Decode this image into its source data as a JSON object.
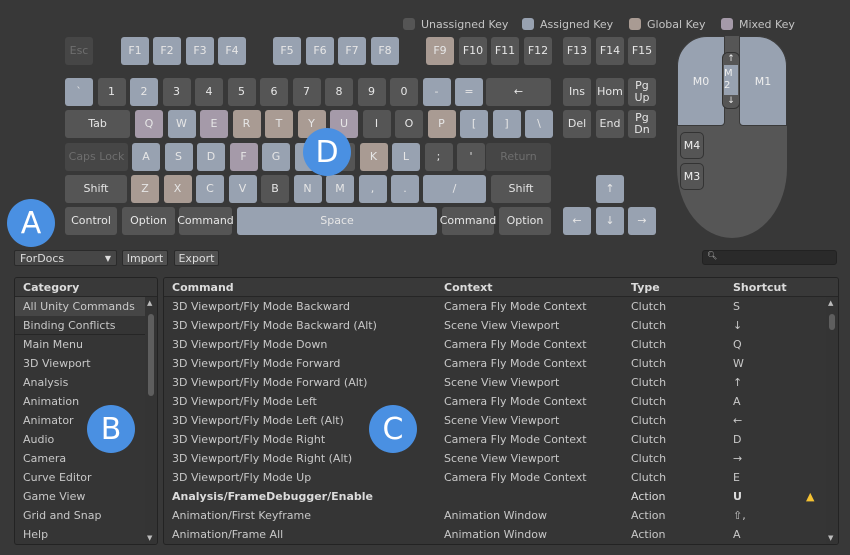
{
  "legend": [
    {
      "label": "Unassigned Key",
      "color": "#555555"
    },
    {
      "label": "Assigned Key",
      "color": "#98a2b1"
    },
    {
      "label": "Global Key",
      "color": "#a99b93"
    },
    {
      "label": "Mixed Key",
      "color": "#a59aa9"
    }
  ],
  "keyboard": {
    "rows": [
      [
        [
          "Esc",
          "d"
        ],
        [
          "F1",
          "a"
        ],
        [
          "F2",
          "a"
        ],
        [
          "F3",
          "a"
        ],
        [
          "F4",
          "a"
        ],
        [
          "F5",
          "a"
        ],
        [
          "F6",
          "a"
        ],
        [
          "F7",
          "a"
        ],
        [
          "F8",
          "a"
        ],
        [
          "F9",
          "g"
        ],
        [
          "F10",
          "u"
        ],
        [
          "F11",
          "u"
        ],
        [
          "F12",
          "u"
        ],
        [
          "F13",
          "u"
        ],
        [
          "F14",
          "u"
        ],
        [
          "F15",
          "u"
        ]
      ],
      [
        [
          "`",
          "a"
        ],
        [
          "1",
          "u"
        ],
        [
          "2",
          "a"
        ],
        [
          "3",
          "u"
        ],
        [
          "4",
          "u"
        ],
        [
          "5",
          "u"
        ],
        [
          "6",
          "u"
        ],
        [
          "7",
          "u"
        ],
        [
          "8",
          "u"
        ],
        [
          "9",
          "u"
        ],
        [
          "0",
          "u"
        ],
        [
          "-",
          "a"
        ],
        [
          "=",
          "a"
        ],
        [
          "←",
          "u"
        ],
        [
          "Ins",
          "u"
        ],
        [
          "Hom",
          "u"
        ],
        [
          "Pg Up",
          "u"
        ]
      ],
      [
        [
          "Tab",
          "u"
        ],
        [
          "Q",
          "m"
        ],
        [
          "W",
          "a"
        ],
        [
          "E",
          "m"
        ],
        [
          "R",
          "g"
        ],
        [
          "T",
          "g"
        ],
        [
          "Y",
          "g"
        ],
        [
          "U",
          "m"
        ],
        [
          "I",
          "u"
        ],
        [
          "O",
          "u"
        ],
        [
          "P",
          "g"
        ],
        [
          "[",
          "a"
        ],
        [
          "]",
          "a"
        ],
        [
          "\\",
          "a"
        ],
        [
          "Del",
          "u"
        ],
        [
          "End",
          "u"
        ],
        [
          "Pg Dn",
          "u"
        ]
      ],
      [
        [
          "Caps Lock",
          "d"
        ],
        [
          "A",
          "a"
        ],
        [
          "S",
          "a"
        ],
        [
          "D",
          "a"
        ],
        [
          "F",
          "m"
        ],
        [
          "G",
          "a"
        ],
        [
          "H",
          "a"
        ],
        [
          "J",
          "u"
        ],
        [
          "K",
          "g"
        ],
        [
          "L",
          "a"
        ],
        [
          ";",
          "u"
        ],
        [
          "'",
          "u"
        ],
        [
          "Return",
          "d"
        ]
      ],
      [
        [
          "Shift",
          "u"
        ],
        [
          "Z",
          "g"
        ],
        [
          "X",
          "g"
        ],
        [
          "C",
          "a"
        ],
        [
          "V",
          "a"
        ],
        [
          "B",
          "u"
        ],
        [
          "N",
          "a"
        ],
        [
          "M",
          "a"
        ],
        [
          ",",
          "a"
        ],
        [
          ".",
          "a"
        ],
        [
          "/",
          "a"
        ],
        [
          "Shift",
          "u"
        ],
        [
          "↑",
          "a"
        ]
      ],
      [
        [
          "Control",
          "u"
        ],
        [
          "Option",
          "u"
        ],
        [
          "Command",
          "u"
        ],
        [
          "Space",
          "a"
        ],
        [
          "Command",
          "u"
        ],
        [
          "Option",
          "u"
        ],
        [
          "←",
          "a"
        ],
        [
          "↓",
          "a"
        ],
        [
          "→",
          "a"
        ]
      ]
    ]
  },
  "mouse": {
    "m0": "M0",
    "m1": "M1",
    "m2": "M 2",
    "m2_up": "↑",
    "m2_down": "↓",
    "m4": "M4",
    "m3": "M3"
  },
  "toolbar": {
    "profile": "ForDocs",
    "import": "Import",
    "export": "Export",
    "search_placeholder": ""
  },
  "category": {
    "header": "Category",
    "items": [
      "All Unity Commands",
      "Binding Conflicts",
      "Main Menu",
      "3D Viewport",
      "Analysis",
      "Animation",
      "Animator",
      "Audio",
      "Camera",
      "Curve Editor",
      "Game View",
      "Grid and Snap",
      "Help"
    ]
  },
  "commands": {
    "headers": {
      "command": "Command",
      "context": "Context",
      "type": "Type",
      "shortcut": "Shortcut"
    },
    "rows": [
      {
        "command": "3D Viewport/Fly Mode Backward",
        "context": "Camera Fly Mode Context",
        "type": "Clutch",
        "shortcut": "S"
      },
      {
        "command": "3D Viewport/Fly Mode Backward (Alt)",
        "context": "Scene View Viewport",
        "type": "Clutch",
        "shortcut": "↓"
      },
      {
        "command": "3D Viewport/Fly Mode Down",
        "context": "Camera Fly Mode Context",
        "type": "Clutch",
        "shortcut": "Q"
      },
      {
        "command": "3D Viewport/Fly Mode Forward",
        "context": "Camera Fly Mode Context",
        "type": "Clutch",
        "shortcut": "W"
      },
      {
        "command": "3D Viewport/Fly Mode Forward (Alt)",
        "context": "Scene View Viewport",
        "type": "Clutch",
        "shortcut": "↑"
      },
      {
        "command": "3D Viewport/Fly Mode Left",
        "context": "Camera Fly Mode Context",
        "type": "Clutch",
        "shortcut": "A"
      },
      {
        "command": "3D Viewport/Fly Mode Left (Alt)",
        "context": "Scene View Viewport",
        "type": "Clutch",
        "shortcut": "←"
      },
      {
        "command": "3D Viewport/Fly Mode Right",
        "context": "Camera Fly Mode Context",
        "type": "Clutch",
        "shortcut": "D"
      },
      {
        "command": "3D Viewport/Fly Mode Right (Alt)",
        "context": "Scene View Viewport",
        "type": "Clutch",
        "shortcut": "→"
      },
      {
        "command": "3D Viewport/Fly Mode Up",
        "context": "Camera Fly Mode Context",
        "type": "Clutch",
        "shortcut": "E"
      },
      {
        "command": "Analysis/FrameDebugger/Enable",
        "context": "",
        "type": "Action",
        "shortcut": "U",
        "bold": true,
        "warning": true
      },
      {
        "command": "Animation/First Keyframe",
        "context": "Animation Window",
        "type": "Action",
        "shortcut": "⇧,"
      },
      {
        "command": "Animation/Frame All",
        "context": "Animation Window",
        "type": "Action",
        "shortcut": "A"
      }
    ]
  },
  "annotations": {
    "a": "A",
    "b": "B",
    "c": "C",
    "d": "D"
  }
}
